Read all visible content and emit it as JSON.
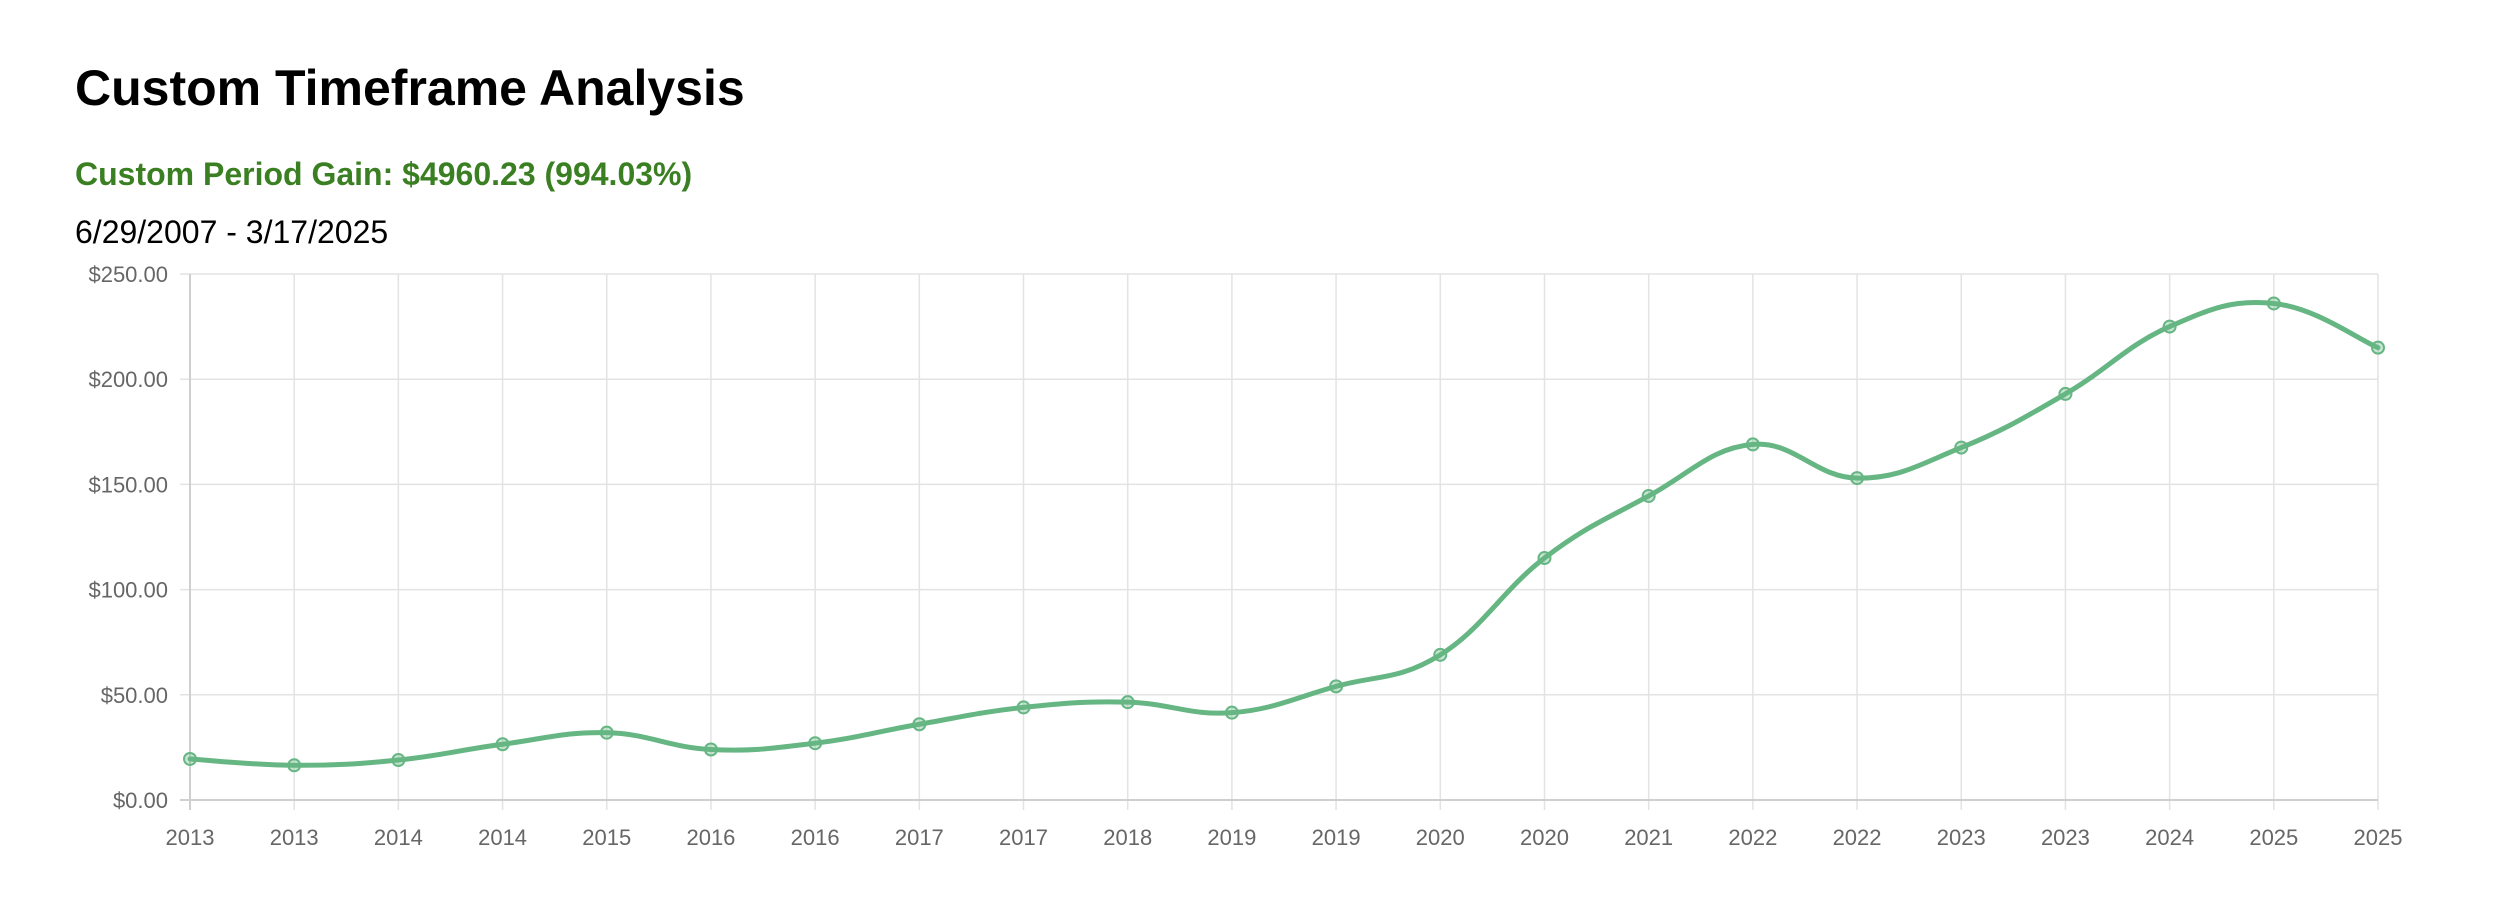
{
  "header": {
    "title": "Custom Timeframe Analysis",
    "gain_text": "Custom Period Gain: $4960.23 (994.03%)",
    "date_range": "6/29/2007 - 3/17/2025"
  },
  "colors": {
    "gain": "#3a7f22",
    "line": "#66b683",
    "grid": "#e3e3e3",
    "axis": "#cfcfcf",
    "tick_text": "#666666"
  },
  "chart_data": {
    "type": "line",
    "x": [
      "2013",
      "2013",
      "2014",
      "2014",
      "2015",
      "2016",
      "2016",
      "2017",
      "2017",
      "2018",
      "2019",
      "2019",
      "2020",
      "2020",
      "2021",
      "2022",
      "2022",
      "2023",
      "2023",
      "2024",
      "2025",
      "2025"
    ],
    "values": [
      19.5,
      16.5,
      19,
      26.5,
      32,
      24,
      27,
      36,
      44,
      46.5,
      41.5,
      54,
      69,
      115,
      144.5,
      169,
      153,
      167.5,
      193,
      225,
      236,
      215
    ],
    "ylim": [
      0,
      250
    ],
    "yticks": [
      0,
      50,
      100,
      150,
      200,
      250
    ],
    "ytick_labels": [
      "$0.00",
      "$50.00",
      "$100.00",
      "$150.00",
      "$200.00",
      "$250.00"
    ],
    "grid": true,
    "legend": "none",
    "curve": "smooth"
  }
}
